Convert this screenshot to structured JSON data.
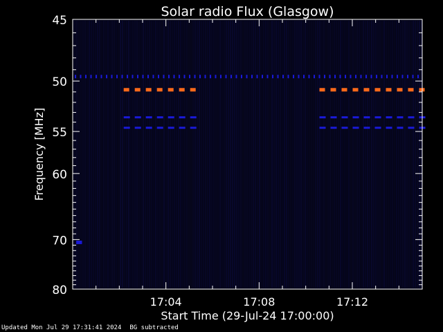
{
  "chart_data": {
    "type": "heatmap",
    "title": "Solar radio Flux (Glasgow)",
    "xlabel": "Start Time (29-Jul-24 17:00:00)",
    "ylabel": "Frequency [MHz]",
    "x_unit": "minutes after 17:00",
    "xlim": [
      0,
      15
    ],
    "ylim": [
      45,
      80
    ],
    "x_ticks": [
      {
        "value": 4,
        "label": "17:04"
      },
      {
        "value": 8,
        "label": "17:08"
      },
      {
        "value": 12,
        "label": "17:12"
      }
    ],
    "y_ticks": [
      45,
      50,
      55,
      60,
      70,
      80
    ],
    "y_scale": "reciprocal",
    "colors": {
      "background": "#000000",
      "plot_bg": "#050518",
      "low": "#0a0a3a",
      "mid": "#1a1ad8",
      "high": "#ff6a1a",
      "axis": "#ffffff"
    },
    "bands": [
      {
        "freq": 49.6,
        "start": 0,
        "end": 15,
        "intensity": "mid",
        "pattern": "dotted"
      },
      {
        "freq": 50.8,
        "start": 2.1,
        "end": 5.2,
        "intensity": "high",
        "pattern": "dashed"
      },
      {
        "freq": 50.8,
        "start": 10.5,
        "end": 15,
        "intensity": "high",
        "pattern": "dashed"
      },
      {
        "freq": 53.5,
        "start": 2.1,
        "end": 5.2,
        "intensity": "mid",
        "pattern": "dashed"
      },
      {
        "freq": 53.5,
        "start": 10.5,
        "end": 15,
        "intensity": "mid",
        "pattern": "dashed"
      },
      {
        "freq": 54.6,
        "start": 2.1,
        "end": 5.2,
        "intensity": "mid",
        "pattern": "dashed"
      },
      {
        "freq": 54.6,
        "start": 10.5,
        "end": 15,
        "intensity": "mid",
        "pattern": "dashed"
      },
      {
        "freq": 70.5,
        "start": 0.15,
        "end": 0.4,
        "intensity": "mid",
        "pattern": "solid"
      }
    ]
  },
  "footer": {
    "updated": "Updated Mon Jul 29 17:31:41 2024",
    "note": "BG subtracted"
  }
}
